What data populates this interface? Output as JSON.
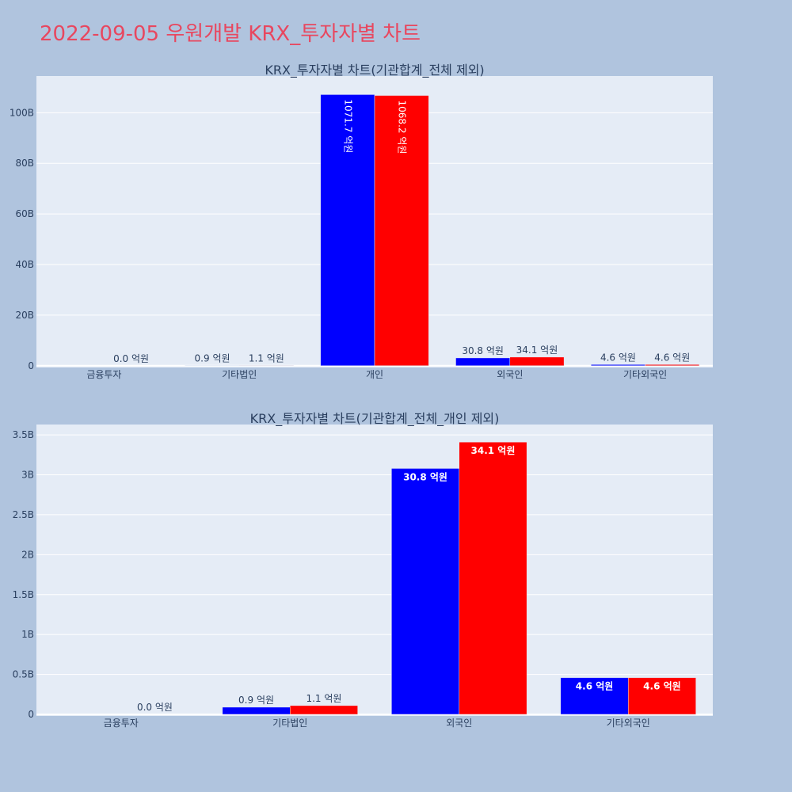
{
  "title": "2022-09-05 우원개발 KRX_투자자별 차트",
  "colors": {
    "background": "#b0c4de",
    "plot": "#e5ecf6",
    "title": "#e8475f",
    "text": "#2a3f5f",
    "buy": "#0000ff",
    "sell": "#ff0000"
  },
  "chart_data": [
    {
      "type": "bar",
      "title": "KRX_투자자별 차트(기관합계_전체 제외)",
      "categories": [
        "금융투자",
        "기타법인",
        "개인",
        "외국인",
        "기타외국인"
      ],
      "series": [
        {
          "color": "#0000ff",
          "values": [
            0,
            0.09,
            107.17,
            3.08,
            0.46
          ],
          "labels": [
            "",
            "0.9 억원",
            "1071.7 억원",
            "30.8 억원",
            "4.6 억원"
          ]
        },
        {
          "color": "#ff0000",
          "values": [
            0.0,
            0.11,
            106.82,
            3.41,
            0.46
          ],
          "labels": [
            "0.0 억원",
            "1.1 억원",
            "1068.2 억원",
            "34.1 억원",
            "4.6 억원"
          ]
        }
      ],
      "yticks": [
        0,
        20,
        40,
        60,
        80,
        100
      ],
      "ytick_labels": [
        "0",
        "20B",
        "40B",
        "60B",
        "80B",
        "100B"
      ],
      "ylim": [
        -0.7,
        114.5
      ],
      "grid": true
    },
    {
      "type": "bar",
      "title": "KRX_투자자별 차트(기관합계_전체_개인 제외)",
      "categories": [
        "금융투자",
        "기타법인",
        "외국인",
        "기타외국인"
      ],
      "series": [
        {
          "color": "#0000ff",
          "values": [
            0,
            0.09,
            3.08,
            0.46
          ],
          "labels": [
            "",
            "0.9 억원",
            "30.8 억원",
            "4.6 억원"
          ]
        },
        {
          "color": "#ff0000",
          "values": [
            0.0,
            0.11,
            3.41,
            0.46
          ],
          "labels": [
            "0.0 억원",
            "1.1 억원",
            "34.1 억원",
            "4.6 억원"
          ]
        }
      ],
      "yticks": [
        0,
        0.5,
        1,
        1.5,
        2,
        2.5,
        3,
        3.5
      ],
      "ytick_labels": [
        "0",
        "0.5B",
        "1B",
        "1.5B",
        "2B",
        "2.5B",
        "3B",
        "3.5B"
      ],
      "ylim": [
        -0.02,
        3.63
      ],
      "grid": true
    }
  ]
}
